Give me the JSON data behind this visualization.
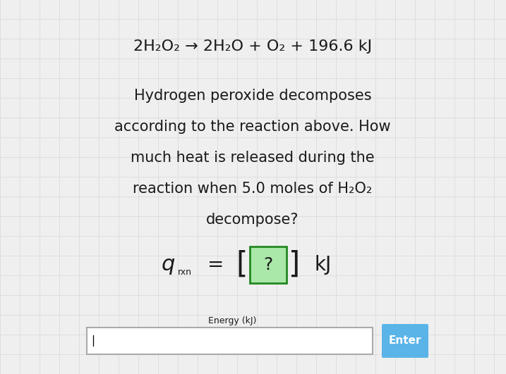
{
  "background_color": "#efefef",
  "grid_color": "#d8d8d8",
  "equation_line1": "2H₂O₂ → 2H₂O + O₂ + 196.6 kJ",
  "question_text_lines": [
    "Hydrogen peroxide decomposes",
    "according to the reaction above. How",
    "much heat is released during the",
    "reaction when 5.0 moles of H₂O₂",
    "decompose?"
  ],
  "input_label": "Energy (kJ)",
  "enter_button_text": "Enter",
  "enter_button_color": "#5ab4e8",
  "bracket_bg_color": "#aae8aa",
  "bracket_border_color": "#228822",
  "text_color": "#1a1a1a",
  "input_border_color": "#aaaaaa",
  "eq_fontsize": 16,
  "body_fontsize": 15,
  "formula_q_fontsize": 22,
  "formula_rxn_fontsize": 9,
  "formula_eq_fontsize": 20,
  "formula_bracket_fontsize": 30,
  "formula_qmark_fontsize": 18,
  "formula_kj_fontsize": 20,
  "label_fontsize": 9,
  "enter_fontsize": 11
}
